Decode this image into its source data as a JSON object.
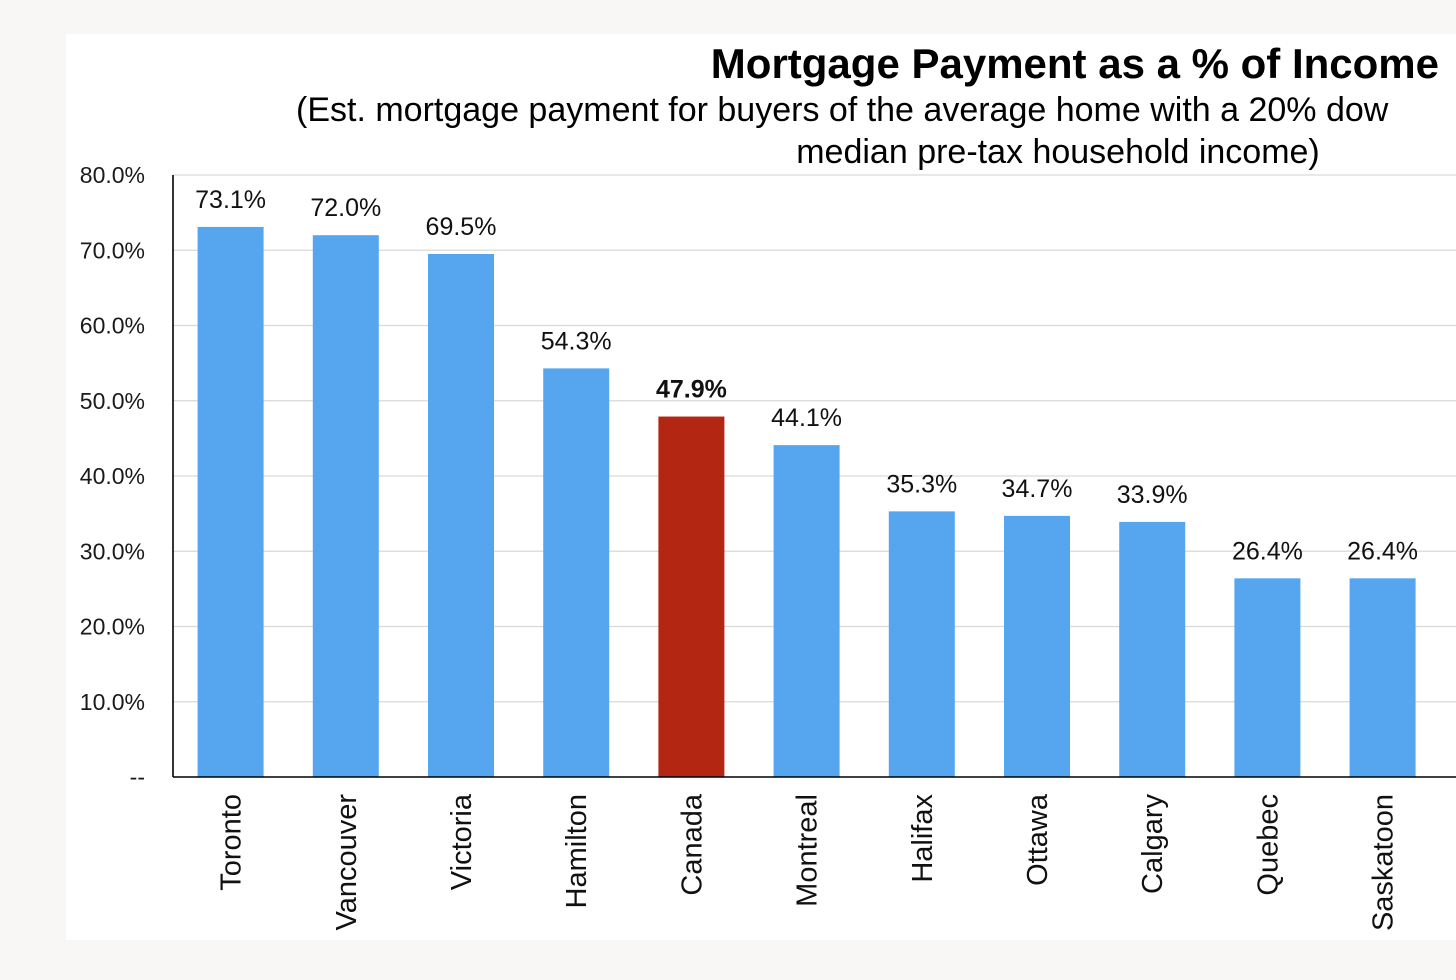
{
  "chart_data": {
    "type": "bar",
    "title": "Mortgage Payment as a % of Income",
    "subtitle_line1": "(Est. mortgage payment for buyers of the average home with a 20% dow",
    "subtitle_line2": "median pre-tax household income)",
    "categories": [
      "Toronto",
      "Vancouver",
      "Victoria",
      "Hamilton",
      "Canada",
      "Montreal",
      "Halifax",
      "Ottawa",
      "Calgary",
      "Quebec",
      "Saskatoon"
    ],
    "values": [
      73.1,
      72.0,
      69.5,
      54.3,
      47.9,
      44.1,
      35.3,
      34.7,
      33.9,
      26.4,
      26.4
    ],
    "data_labels": [
      "73.1%",
      "72.0%",
      "69.5%",
      "54.3%",
      "47.9%",
      "44.1%",
      "35.3%",
      "34.7%",
      "33.9%",
      "26.4%",
      "26.4%"
    ],
    "highlight_category": "Canada",
    "ylim": [
      0,
      80
    ],
    "yticks": [
      0,
      10,
      20,
      30,
      40,
      50,
      60,
      70,
      80
    ],
    "ytick_labels": [
      "--",
      "10.0%",
      "20.0%",
      "30.0%",
      "40.0%",
      "50.0%",
      "60.0%",
      "70.0%",
      "80.0%"
    ],
    "xlabel": "",
    "ylabel": "",
    "grid": true,
    "colors": {
      "bar": "#55a6ee",
      "highlight": "#b22612",
      "grid": "#d9d9d9",
      "axis": "#000000"
    }
  }
}
